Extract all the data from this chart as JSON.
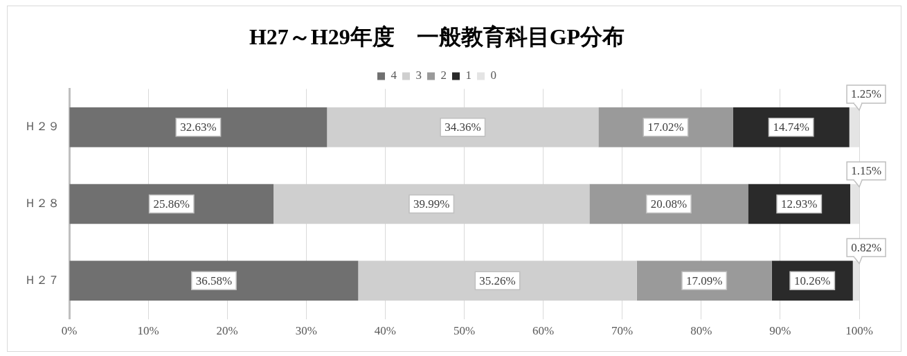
{
  "chart_data": {
    "type": "bar",
    "orientation": "horizontal",
    "stacked": true,
    "title": "H27～H29年度　一般教育科目GP分布",
    "categories": [
      "Ｈ２９",
      "Ｈ２８",
      "Ｈ２７"
    ],
    "series": [
      {
        "name": "4",
        "color": "#707070",
        "values": [
          32.63,
          25.86,
          36.58
        ],
        "value_labels": [
          "32.63%",
          "25.86%",
          "36.58%"
        ]
      },
      {
        "name": "3",
        "color": "#cfcfcf",
        "values": [
          34.36,
          39.99,
          35.26
        ],
        "value_labels": [
          "34.36%",
          "39.99%",
          "35.26%"
        ]
      },
      {
        "name": "2",
        "color": "#9a9a9a",
        "values": [
          17.02,
          20.08,
          17.09
        ],
        "value_labels": [
          "17.02%",
          "20.08%",
          "17.09%"
        ]
      },
      {
        "name": "1",
        "color": "#2a2a2a",
        "values": [
          14.74,
          12.93,
          10.26
        ],
        "value_labels": [
          "14.74%",
          "12.93%",
          "10.26%"
        ]
      },
      {
        "name": "0",
        "color": "#e4e4e4",
        "values": [
          1.25,
          1.15,
          0.82
        ],
        "value_labels": [
          "1.25%",
          "1.15%",
          "0.82%"
        ]
      }
    ],
    "xlim": [
      0,
      100
    ],
    "xticks": [
      {
        "value": 0,
        "label": "0%"
      },
      {
        "value": 10,
        "label": "10%"
      },
      {
        "value": 20,
        "label": "20%"
      },
      {
        "value": 30,
        "label": "30%"
      },
      {
        "value": 40,
        "label": "40%"
      },
      {
        "value": 50,
        "label": "50%"
      },
      {
        "value": 60,
        "label": "60%"
      },
      {
        "value": 70,
        "label": "70%"
      },
      {
        "value": 80,
        "label": "80%"
      },
      {
        "value": 90,
        "label": "90%"
      },
      {
        "value": 100,
        "label": "100%"
      }
    ],
    "grid": "x",
    "legend": "top"
  }
}
